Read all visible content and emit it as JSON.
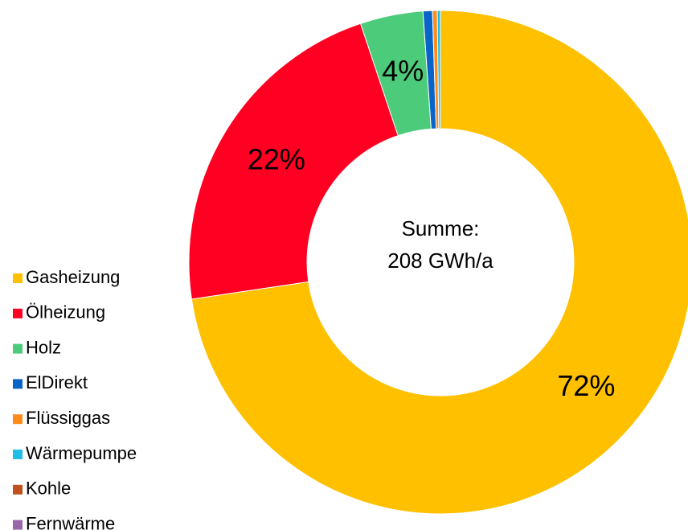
{
  "chart_data": {
    "type": "donut",
    "categories": [
      "Gasheizung",
      "Ölheizung",
      "Holz",
      "ElDirekt",
      "Flüssiggas",
      "Wärmepumpe",
      "Kohle",
      "Fernwärme"
    ],
    "values": [
      72,
      22,
      4,
      0.6,
      0.3,
      0.2,
      0,
      0
    ],
    "value_labels": [
      "72%",
      "22%",
      "4%",
      null,
      null,
      null,
      null,
      null
    ],
    "colors": [
      "#ffc000",
      "#ff0022",
      "#4ccc7a",
      "#0a64c8",
      "#ff8c1a",
      "#1ebee6",
      "#c0501e",
      "#9966aa"
    ],
    "center_text": [
      "Summe:",
      "208 GWh/a"
    ],
    "legend": "left"
  }
}
